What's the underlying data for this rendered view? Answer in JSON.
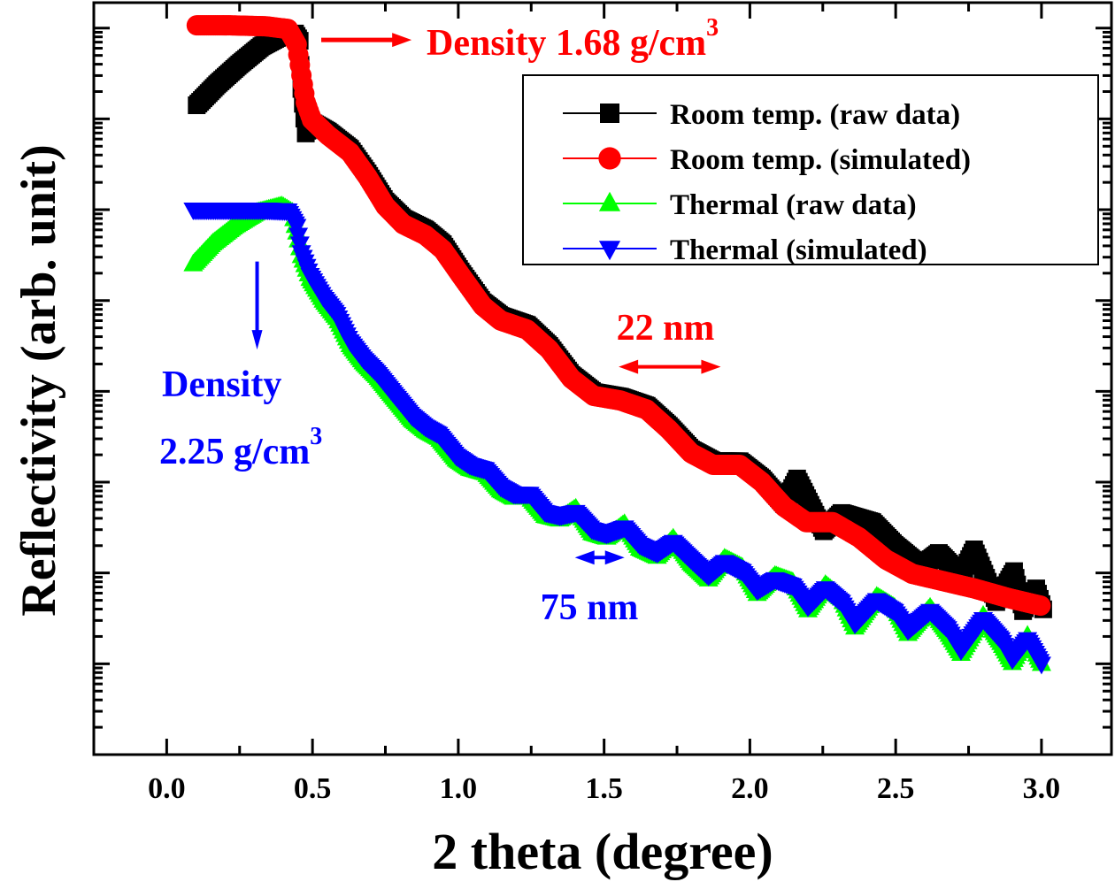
{
  "chart_data": {
    "type": "scatter",
    "title": "",
    "xlabel": "2 theta (degree)",
    "ylabel": "Reflectivity (arb. unit)",
    "xlim": [
      -0.25,
      3.24
    ],
    "ylim_log10_decades": [
      -1.0,
      7.28
    ],
    "y_scale": "log",
    "y_major_ticks_log10": [
      0,
      1,
      2,
      3,
      4,
      5,
      6,
      7
    ],
    "y_tick_labels_shown": false,
    "x_ticks": [
      0.0,
      0.5,
      1.0,
      1.5,
      2.0,
      2.5,
      3.0
    ],
    "x_tick_labels": [
      "0.0",
      "0.5",
      "1.0",
      "1.5",
      "2.0",
      "2.5",
      "3.0"
    ],
    "x_minor_ticks": [
      0.25,
      0.75,
      1.25,
      1.75,
      2.25,
      2.75
    ],
    "grid": false,
    "legend_position": "top-right",
    "series": [
      {
        "name": "Room temp. (raw data)",
        "color": "#000000",
        "marker": "square",
        "x": [
          0.103,
          0.173,
          0.249,
          0.325,
          0.401,
          0.44,
          0.456,
          0.462,
          0.477,
          0.498,
          0.553,
          0.629,
          0.689,
          0.75,
          0.811,
          0.887,
          0.947,
          1.008,
          1.084,
          1.145,
          1.236,
          1.312,
          1.388,
          1.464,
          1.555,
          1.646,
          1.722,
          1.798,
          1.874,
          1.965,
          2.041,
          2.117,
          2.162,
          2.253,
          2.314,
          2.42,
          2.496,
          2.587,
          2.648,
          2.724,
          2.769,
          2.845,
          2.906,
          2.937,
          2.982,
          3.006
        ],
        "y": [
          6.15,
          6.38,
          6.6,
          6.8,
          6.93,
          6.94,
          6.86,
          6.33,
          5.84,
          5.96,
          5.86,
          5.67,
          5.4,
          5.09,
          4.9,
          4.78,
          4.62,
          4.32,
          3.98,
          3.83,
          3.73,
          3.5,
          3.18,
          2.99,
          2.94,
          2.84,
          2.62,
          2.36,
          2.23,
          2.23,
          2.04,
          1.76,
          2.04,
          1.46,
          1.66,
          1.56,
          1.31,
          1.07,
          1.22,
          0.97,
          1.26,
          0.68,
          1.02,
          0.58,
          0.83,
          0.6
        ]
      },
      {
        "name": "Room temp. (simulated)",
        "color": "#ff0000",
        "marker": "circle",
        "x": [
          0.103,
          0.219,
          0.34,
          0.416,
          0.446,
          0.462,
          0.477,
          0.498,
          0.553,
          0.629,
          0.689,
          0.75,
          0.811,
          0.887,
          0.947,
          1.008,
          1.084,
          1.145,
          1.236,
          1.312,
          1.388,
          1.464,
          1.555,
          1.646,
          1.722,
          1.798,
          1.874,
          1.965,
          2.041,
          2.117,
          2.193,
          2.284,
          2.375,
          2.466,
          2.557,
          2.663,
          2.769,
          2.891,
          2.997
        ],
        "y": [
          7.03,
          7.03,
          7.02,
          6.99,
          6.82,
          6.48,
          6.18,
          5.99,
          5.82,
          5.63,
          5.36,
          5.04,
          4.84,
          4.72,
          4.56,
          4.28,
          3.94,
          3.78,
          3.68,
          3.46,
          3.14,
          2.95,
          2.9,
          2.8,
          2.58,
          2.32,
          2.19,
          2.19,
          2.0,
          1.73,
          1.56,
          1.56,
          1.39,
          1.15,
          0.99,
          0.91,
          0.83,
          0.72,
          0.64
        ]
      },
      {
        "name": "Thermal (raw data)",
        "color": "#00ff00",
        "marker": "triangle-up",
        "x": [
          0.091,
          0.158,
          0.234,
          0.31,
          0.395,
          0.431,
          0.446,
          0.462,
          0.492,
          0.537,
          0.583,
          0.629,
          0.674,
          0.72,
          0.78,
          0.841,
          0.887,
          0.932,
          0.993,
          1.039,
          1.093,
          1.145,
          1.19,
          1.245,
          1.297,
          1.348,
          1.403,
          1.458,
          1.509,
          1.57,
          1.622,
          1.682,
          1.737,
          1.798,
          1.858,
          1.913,
          1.974,
          2.025,
          2.086,
          2.147,
          2.199,
          2.259,
          2.314,
          2.36,
          2.435,
          2.496,
          2.542,
          2.618,
          2.678,
          2.724,
          2.8,
          2.861,
          2.9,
          2.952,
          3.0
        ],
        "y": [
          4.4,
          4.63,
          4.82,
          4.97,
          5.04,
          4.97,
          4.75,
          4.49,
          4.24,
          4.0,
          3.81,
          3.51,
          3.32,
          3.17,
          2.93,
          2.69,
          2.57,
          2.49,
          2.25,
          2.15,
          2.1,
          1.91,
          1.83,
          1.83,
          1.63,
          1.59,
          1.71,
          1.44,
          1.39,
          1.54,
          1.27,
          1.18,
          1.38,
          1.11,
          0.93,
          1.16,
          1.06,
          0.77,
          0.97,
          0.9,
          0.59,
          0.87,
          0.72,
          0.4,
          0.74,
          0.62,
          0.33,
          0.62,
          0.35,
          0.11,
          0.53,
          0.23,
          0.01,
          0.31,
          0.0
        ]
      },
      {
        "name": "Thermal (simulated)",
        "color": "#0000ff",
        "marker": "triangle-down",
        "x": [
          0.091,
          0.219,
          0.34,
          0.416,
          0.446,
          0.462,
          0.492,
          0.537,
          0.583,
          0.629,
          0.674,
          0.72,
          0.78,
          0.841,
          0.887,
          0.932,
          0.993,
          1.039,
          1.093,
          1.145,
          1.19,
          1.245,
          1.297,
          1.348,
          1.403,
          1.458,
          1.509,
          1.57,
          1.622,
          1.682,
          1.737,
          1.798,
          1.858,
          1.913,
          1.974,
          2.025,
          2.086,
          2.147,
          2.199,
          2.259,
          2.314,
          2.36,
          2.435,
          2.496,
          2.542,
          2.618,
          2.678,
          2.724,
          2.8,
          2.861,
          2.9,
          2.952,
          3.0
        ],
        "y": [
          5.0,
          5.0,
          5.0,
          4.99,
          4.82,
          4.53,
          4.28,
          4.04,
          3.85,
          3.55,
          3.36,
          3.21,
          2.97,
          2.73,
          2.61,
          2.53,
          2.29,
          2.19,
          2.14,
          1.95,
          1.87,
          1.87,
          1.67,
          1.63,
          1.67,
          1.48,
          1.43,
          1.5,
          1.31,
          1.22,
          1.34,
          1.15,
          0.97,
          1.12,
          1.02,
          0.81,
          0.93,
          0.86,
          0.63,
          0.83,
          0.68,
          0.44,
          0.7,
          0.58,
          0.37,
          0.58,
          0.39,
          0.15,
          0.49,
          0.27,
          0.05,
          0.27,
          0.0
        ]
      }
    ],
    "annotations": [
      {
        "id": "density-room",
        "text": "Density 1.68 g/cm",
        "superscript": "3",
        "color": "#ff0000",
        "arrow": "right",
        "arrow_from": [
          0.53,
          6.87
        ],
        "arrow_to": [
          0.84,
          6.87
        ],
        "text_at": [
          0.88,
          6.75
        ]
      },
      {
        "id": "density-thermal-line1",
        "text": "Density",
        "color": "#0000ff"
      },
      {
        "id": "density-thermal-line2",
        "text": "2.25 g/cm",
        "superscript": "3",
        "color": "#0000ff",
        "arrow": "down",
        "arrow_from": [
          0.31,
          4.43
        ],
        "arrow_to": [
          0.31,
          3.46
        ]
      },
      {
        "id": "thickness-room",
        "text": "22 nm",
        "color": "#ff0000",
        "arrow": "double",
        "arrow_from": [
          1.55,
          3.27
        ],
        "arrow_to": [
          1.9,
          3.27
        ]
      },
      {
        "id": "thickness-thermal",
        "text": "75 nm",
        "color": "#0000ff",
        "arrow": "double",
        "arrow_from": [
          1.4,
          1.17
        ],
        "arrow_to": [
          1.57,
          1.17
        ]
      }
    ]
  }
}
